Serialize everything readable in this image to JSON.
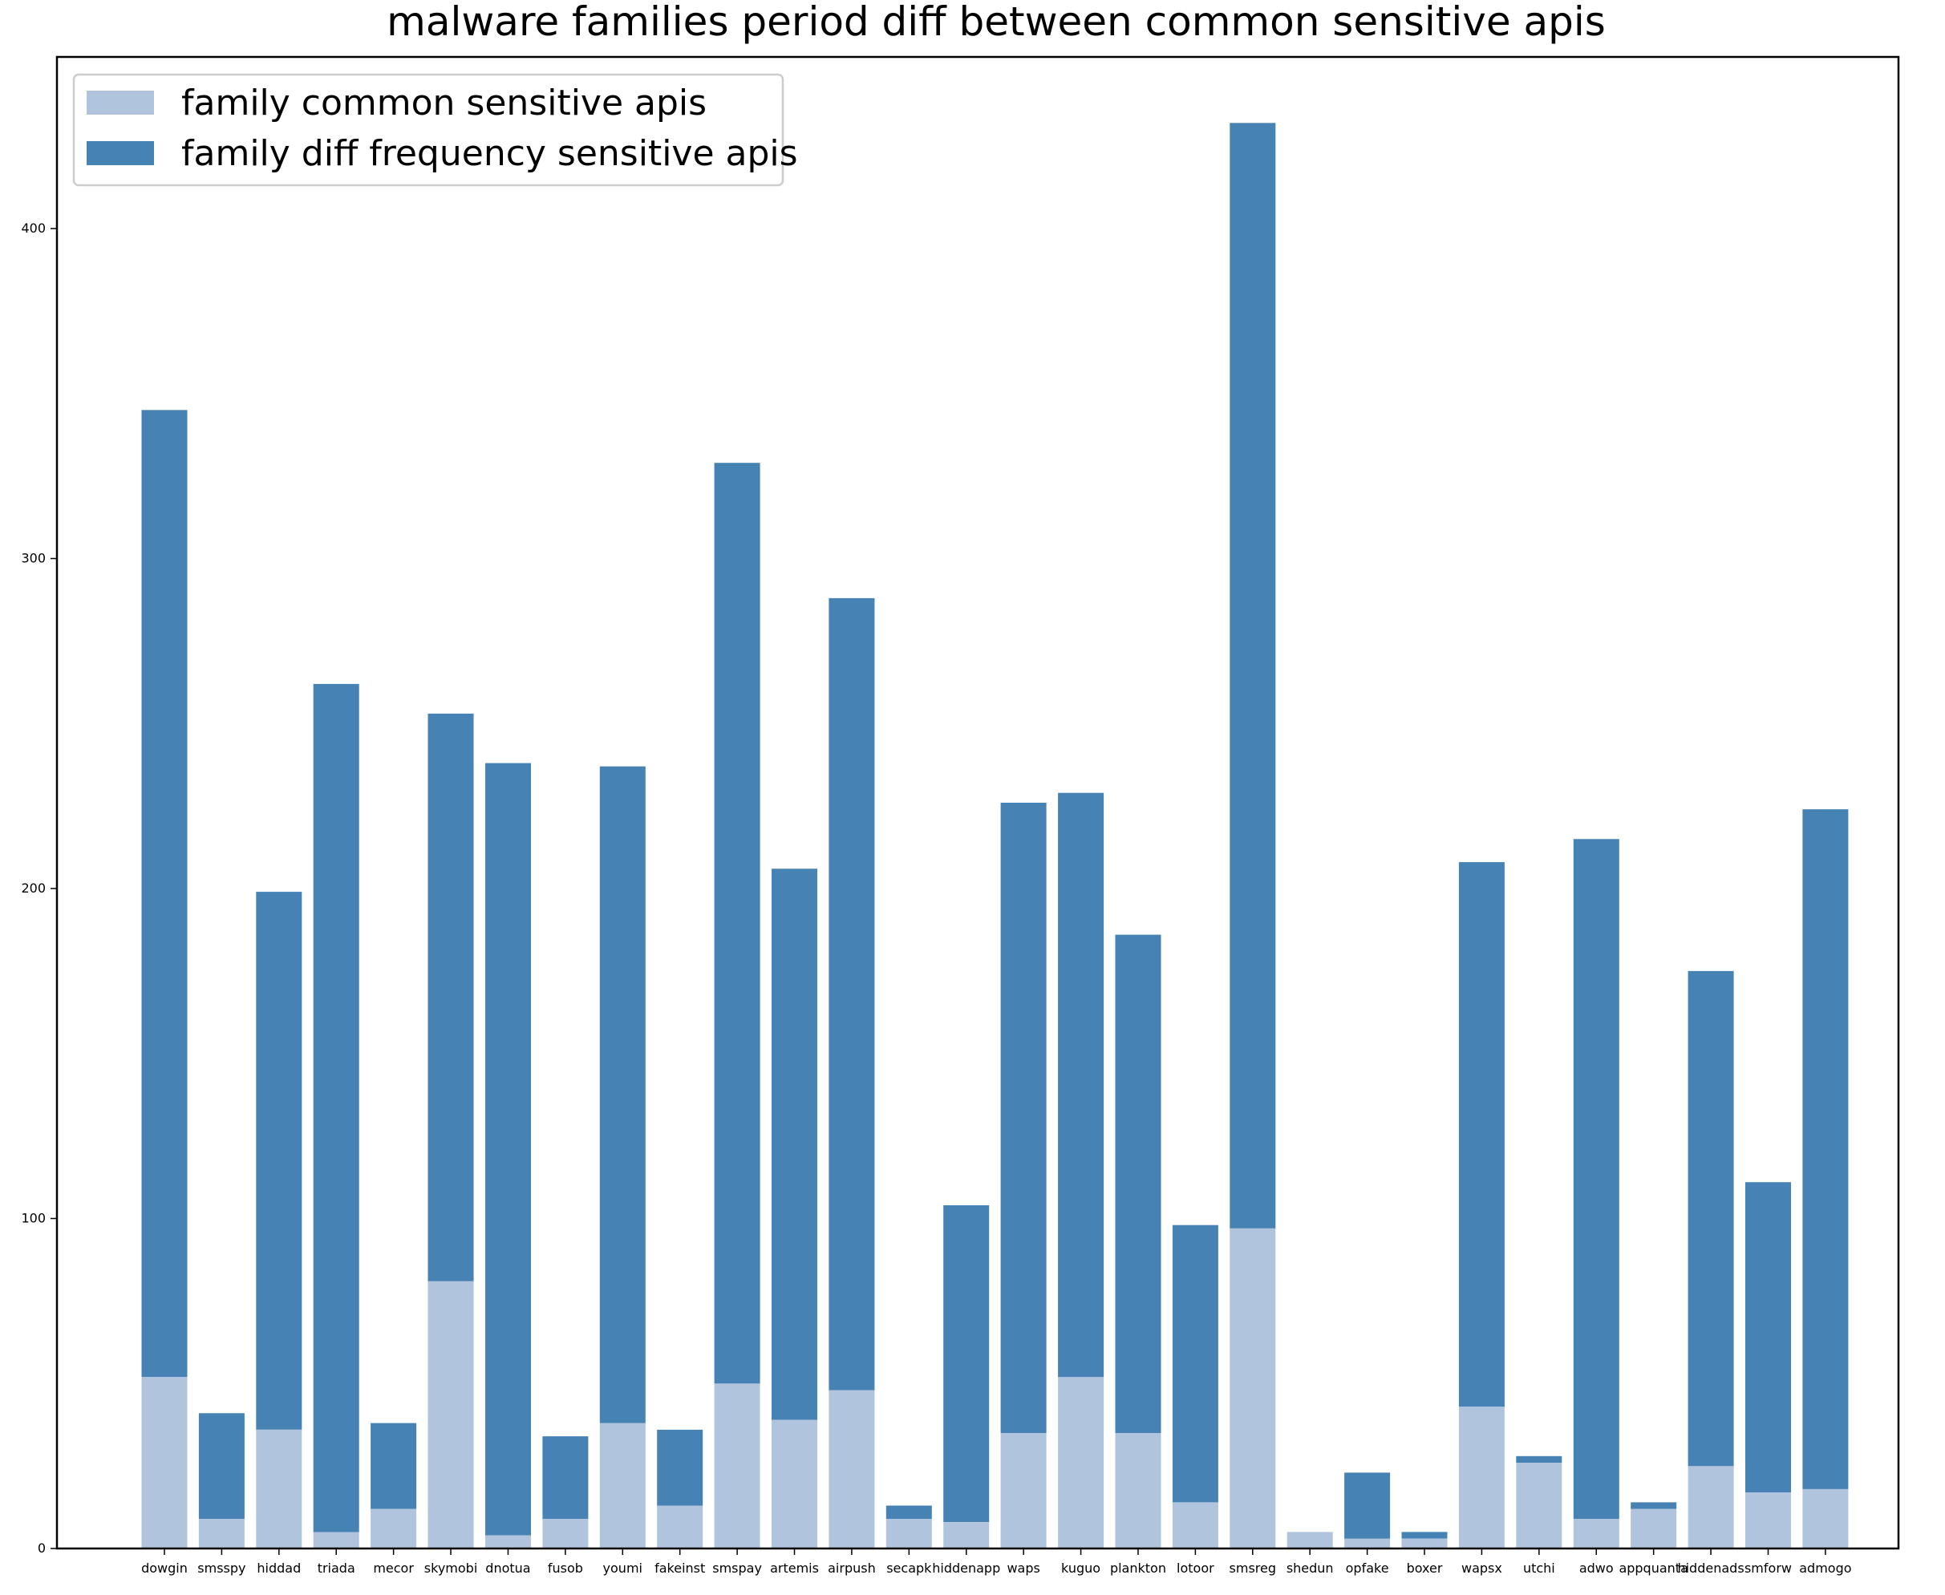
{
  "chart_data": {
    "type": "bar",
    "stacked": true,
    "title": "malware families period diff between common sensitive apis",
    "xlabel": "",
    "ylabel": "",
    "ylim": [
      0,
      452
    ],
    "yticks": [
      0,
      100,
      200,
      300,
      400
    ],
    "grid": false,
    "legend_position": "top-left",
    "categories": [
      "dowgin",
      "smsspy",
      "hiddad",
      "triada",
      "mecor",
      "skymobi",
      "dnotua",
      "fusob",
      "youmi",
      "fakeinst",
      "smspay",
      "artemis",
      "airpush",
      "secapk",
      "hiddenapp",
      "waps",
      "kuguo",
      "plankton",
      "lotoor",
      "smsreg",
      "shedun",
      "opfake",
      "boxer",
      "wapsx",
      "utchi",
      "adwo",
      "appquanta",
      "hiddenads",
      "smforw",
      "admogo"
    ],
    "series": [
      {
        "name": "family common sensitive apis",
        "color": "#b0c4de",
        "values": [
          52,
          9,
          36,
          5,
          12,
          81,
          4,
          9,
          38,
          13,
          50,
          39,
          48,
          9,
          8,
          35,
          52,
          35,
          14,
          97,
          5,
          3,
          3,
          43,
          26,
          9,
          12,
          25,
          17,
          18
        ]
      },
      {
        "name": "family diff frequency sensitive apis",
        "color": "#4682b4",
        "values": [
          293,
          32,
          163,
          257,
          26,
          172,
          234,
          25,
          199,
          23,
          279,
          167,
          240,
          4,
          96,
          191,
          177,
          151,
          84,
          335,
          0,
          20,
          2,
          165,
          2,
          206,
          2,
          150,
          94,
          206
        ]
      }
    ]
  }
}
